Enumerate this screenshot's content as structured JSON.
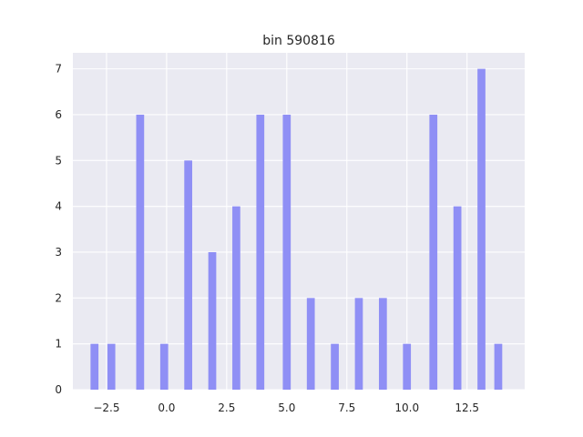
{
  "chart_data": {
    "type": "bar",
    "title": "bin 590816",
    "xlabel": "",
    "ylabel": "",
    "x": [
      -3,
      -2.3,
      -1.1,
      -0.1,
      0.9,
      1.9,
      2.9,
      3.9,
      5.0,
      6.0,
      7.0,
      8.0,
      9.0,
      10.0,
      11.1,
      12.1,
      13.1,
      13.8
    ],
    "values": [
      1,
      1,
      6,
      1,
      5,
      3,
      4,
      6,
      6,
      2,
      1,
      2,
      2,
      1,
      6,
      4,
      7,
      1
    ],
    "bar_width": 0.33,
    "xlim": [
      -3.9,
      14.9
    ],
    "ylim": [
      0,
      7.35
    ],
    "xticks": [
      -2.5,
      0.0,
      2.5,
      5.0,
      7.5,
      10.0,
      12.5
    ],
    "xtick_labels": [
      "−2.5",
      "0.0",
      "2.5",
      "5.0",
      "7.5",
      "10.0",
      "12.5"
    ],
    "yticks": [
      0,
      1,
      2,
      3,
      4,
      5,
      6,
      7
    ],
    "ytick_labels": [
      "0",
      "1",
      "2",
      "3",
      "4",
      "5",
      "6",
      "7"
    ],
    "grid": true,
    "colors": {
      "bar": "#8f8ff5",
      "plot_background": "#eaeaf2",
      "grid": "#ffffff",
      "text": "#262626"
    }
  }
}
